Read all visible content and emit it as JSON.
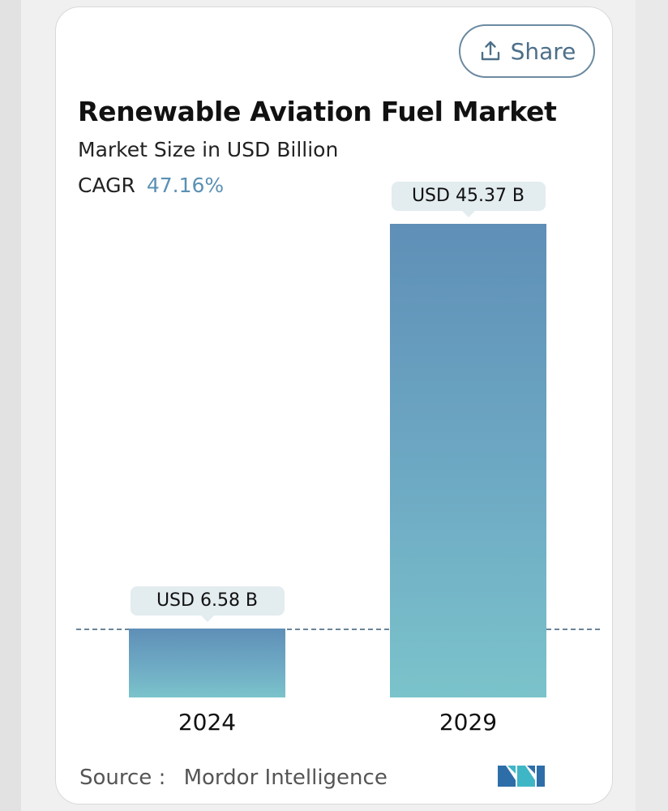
{
  "share": {
    "label": "Share",
    "icon": "share-icon"
  },
  "header": {
    "title": "Renewable Aviation Fuel Market",
    "subtitle": "Market Size in USD Billion",
    "cagr_label": "CAGR",
    "cagr_value": "47.16%"
  },
  "chart_data": {
    "type": "bar",
    "title": "Renewable Aviation Fuel Market",
    "subtitle": "Market Size in USD Billion",
    "categories": [
      "2024",
      "2029"
    ],
    "values": [
      6.58,
      45.37
    ],
    "value_labels": [
      "USD 6.58 B",
      "USD 45.37 B"
    ],
    "ylabel": "USD Billion",
    "xlabel": "",
    "ylim": [
      0,
      45.37
    ],
    "grid": false,
    "reference_line_value": 6.58
  },
  "footer": {
    "source_label": "Source :",
    "source_name": "Mordor Intelligence",
    "logo_icon": "mordor-intelligence-logo"
  },
  "colors": {
    "bar_top": "#5f8fb7",
    "bar_bottom": "#7bc3cb",
    "accent": "#5b90b4",
    "label_bg": "#e3ecef"
  }
}
